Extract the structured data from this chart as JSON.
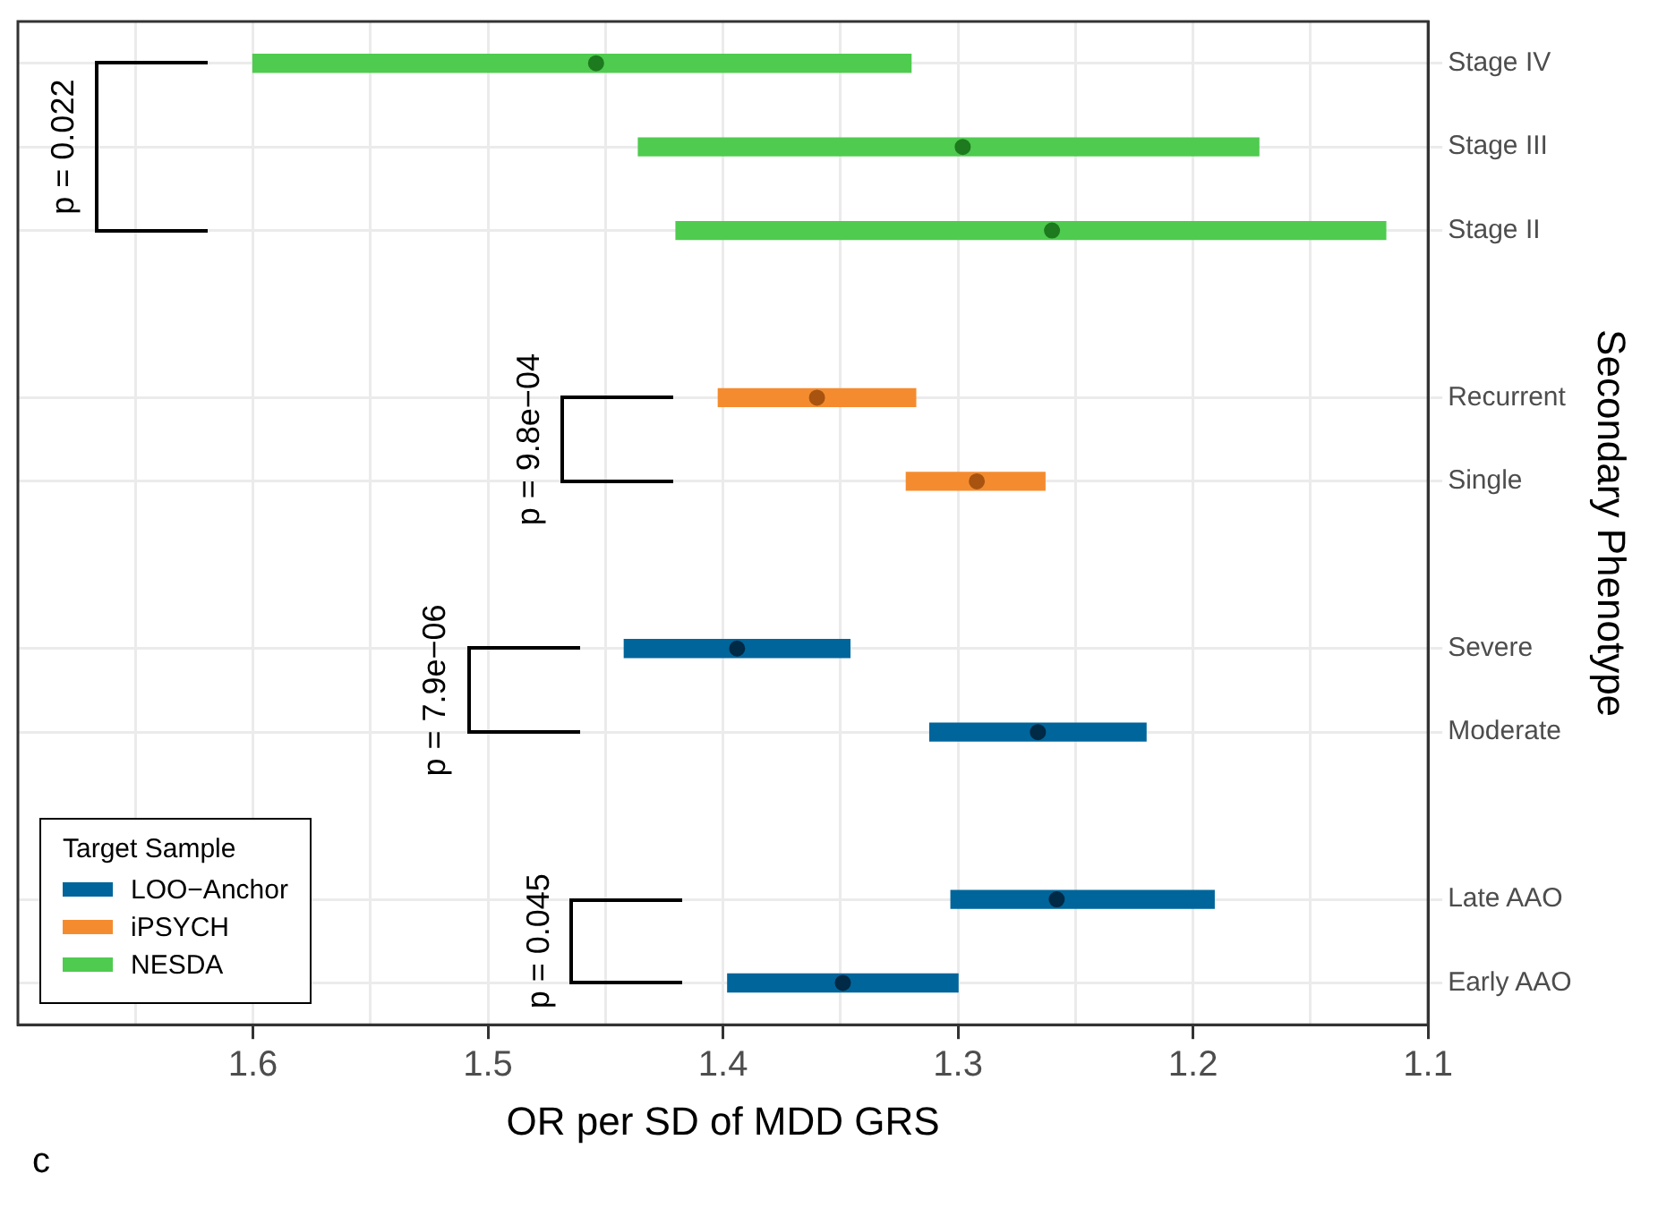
{
  "chart_data": {
    "type": "bar",
    "orientation": "horizontal",
    "title": "c",
    "xlabel": "OR per SD of MDD GRS",
    "ylabel": "Secondary Phenotype",
    "legend_title": "Target Sample",
    "categories": [
      "Stage IV",
      "Stage III",
      "Stage II",
      null,
      "Recurrent",
      "Single",
      null,
      "Severe",
      "Moderate",
      null,
      "Late AAO",
      "Early AAO"
    ],
    "series": [
      {
        "name": "LOO−Anchor",
        "color": "#00659b",
        "base": [
          null,
          null,
          null,
          null,
          null,
          null,
          null,
          1.346,
          1.22,
          null,
          1.191,
          1.3
        ],
        "values": [
          null,
          null,
          null,
          null,
          null,
          null,
          null,
          0.096,
          0.092,
          null,
          0.112,
          0.098
        ]
      },
      {
        "name": "iPSYCH",
        "color": "#f48c2f",
        "base": [
          null,
          null,
          null,
          null,
          1.318,
          1.263,
          null,
          null,
          null,
          null,
          null,
          null
        ],
        "values": [
          null,
          null,
          null,
          null,
          0.084,
          0.059,
          null,
          null,
          null,
          null,
          null,
          null
        ]
      },
      {
        "name": "NESDA",
        "color": "#4fcb4f",
        "base": [
          1.32,
          1.172,
          1.118,
          null,
          null,
          null,
          null,
          null,
          null,
          null,
          null,
          null
        ],
        "values": [
          0.28,
          0.264,
          0.302,
          null,
          null,
          null,
          null,
          null,
          null,
          null,
          null,
          null
        ]
      },
      {
        "type": "scatter",
        "colors": [
          "#1e7a1e",
          "#1e7a1e",
          "#1e7a1e",
          null,
          "#a85410",
          "#a85410",
          null,
          "#002a45",
          "#002a45",
          null,
          "#002a45",
          "#002a45"
        ],
        "values": [
          1.454,
          1.298,
          1.26,
          null,
          1.36,
          1.292,
          null,
          1.394,
          1.266,
          null,
          1.258,
          1.349
        ]
      }
    ],
    "xlim": [
      1.7,
      1.1
    ],
    "xticks": [
      {
        "value": 1.65,
        "label": null
      },
      1.6,
      {
        "value": 1.55,
        "label": null
      },
      1.5,
      {
        "value": 1.45,
        "label": null
      },
      1.4,
      {
        "value": 1.35,
        "label": null
      },
      1.3,
      {
        "value": 1.25,
        "label": null
      },
      1.2,
      {
        "value": 1.15,
        "label": null
      },
      1.1
    ],
    "grid": true,
    "legend": "bottom left",
    "marker": "circle",
    "annotations": [
      "p = 0.022",
      "p = 9.8e−04",
      "p = 7.9e−06",
      "p = 0.045"
    ]
  }
}
